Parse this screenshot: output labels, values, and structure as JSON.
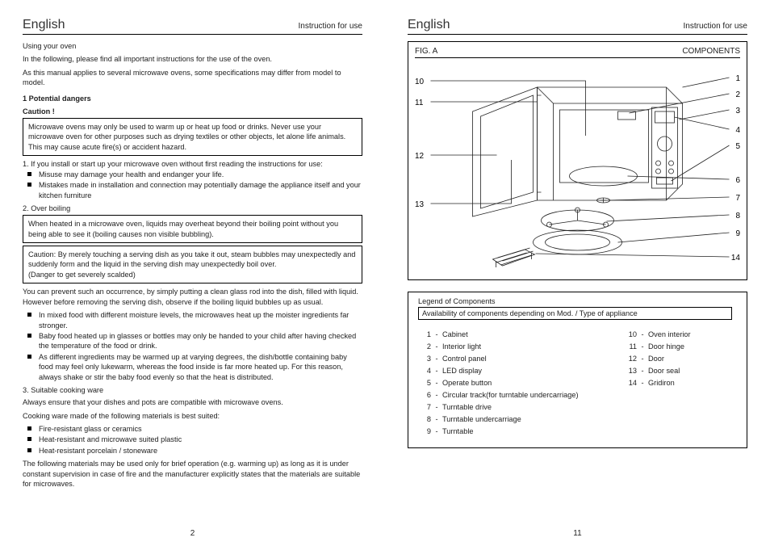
{
  "left": {
    "lang": "English",
    "sub": "Instruction for use",
    "heading": "Using your oven",
    "intro1": "In the following, please find all important instructions for the  use of  the oven.",
    "intro2": "As this manual  applies  to several  microwave ovens,  some specifications  may  differ from  model to model.",
    "sec1_title": "1 Potential dangers",
    "caution": "Caution !",
    "box1": "Microwave ovens may only be used to  warm up or heat up food or drinks. Never use your microwave oven for other purposes such as drying textiles or other objects, let alone life animals. This may cause acute  fire(s) or accident hazard.",
    "item1": "1.  If you install or start up your  microwave oven without first reading the instructions for use:",
    "bul1a": "Misuse may damage your health and endanger your life.",
    "bul1b": "Mistakes made in installation and connection may potentially damage the appliance itself and your kitchen furniture",
    "item2": "2.  Over boiling",
    "box2": "When heated in a microwave oven, liquids  may overheat beyond their boiling point without you being able to see it (boiling causes non visible bubbling).",
    "box3": "Caution:  By merely touching a serving  dish as you take it out, steam bubbles  may unexpectedly and suddenly form and the liquid in the serving dish  may unexpectedly boil over.\n(Danger to get severely scalded)",
    "para_prevent": "You can prevent such an occurrence, by simply putting a clean glass rod into the dish, filled with liquid. However before removing the serving dish,  observe if the boiling  liquid bubbles up as usual.",
    "bul2a": "In mixed food with different moisture levels, the microwaves heat up  the moister ingredients far stronger.",
    "bul2b": "Baby food heated up in glasses or bottles may only be handed to your child after having checked the temperature of the food or drink.",
    "bul2c": "As different ingredients may be warmed up at varying degrees, the dish/bottle containing baby food may feel only  lukewarm, whereas the food  inside is far more heated up. For this reason, always shake or stir the baby food evenly so that  the heat is distributed.",
    "item3": "3. Suitable cooking ware",
    "para_compat": "Always ensure that your dishes and pots are compatible  with microwave ovens.",
    "para_mat": "Cooking ware made of the following materials is best suited:",
    "bul3a": "Fire-resistant glass  or ceramics",
    "bul3b": "Heat-resistant and  microwave suited plastic",
    "bul3c": "Heat-resistant porcelain /  stoneware",
    "para_brief": "The following materials may be used only for brief operation (e.g. warming up) as long as it is under constant supervision in case of fire  and the manufacturer explicitly states that the materials are suitable for microwaves.",
    "page_num": "2"
  },
  "right": {
    "lang": "English",
    "sub": "Instruction for use",
    "fig_label": "FIG.  A",
    "fig_title": "COMPONENTS",
    "labels_left": [
      "10",
      "11",
      "12",
      "13"
    ],
    "labels_right": [
      "1",
      "2",
      "3",
      "4",
      "5",
      "6",
      "7",
      "8",
      "9",
      "14"
    ],
    "legend_title": "Legend of Components",
    "legend_sub": "Availability of components depending on Mod. / Type of appliance",
    "legend": [
      {
        "n": "1",
        "t": "Cabinet"
      },
      {
        "n": "2",
        "t": "Interior light"
      },
      {
        "n": "3",
        "t": "Control panel"
      },
      {
        "n": "4",
        "t": "LED display"
      },
      {
        "n": "5",
        "t": "Operate button"
      },
      {
        "n": "6",
        "t": "Circular track(for turntable undercarriage)"
      },
      {
        "n": "7",
        "t": "Turntable drive"
      },
      {
        "n": "8",
        "t": "Turntable undercarriage"
      },
      {
        "n": "9",
        "t": "Turntable"
      },
      {
        "n": "10",
        "t": "Oven interior"
      },
      {
        "n": "11",
        "t": "Door hinge"
      },
      {
        "n": "12",
        "t": "Door"
      },
      {
        "n": "13",
        "t": "Door seal"
      },
      {
        "n": "14",
        "t": "Gridiron"
      }
    ],
    "page_num": "11",
    "style": {
      "stroke": "#222",
      "stroke_light": "#555",
      "stroke_w": "0.8"
    }
  }
}
